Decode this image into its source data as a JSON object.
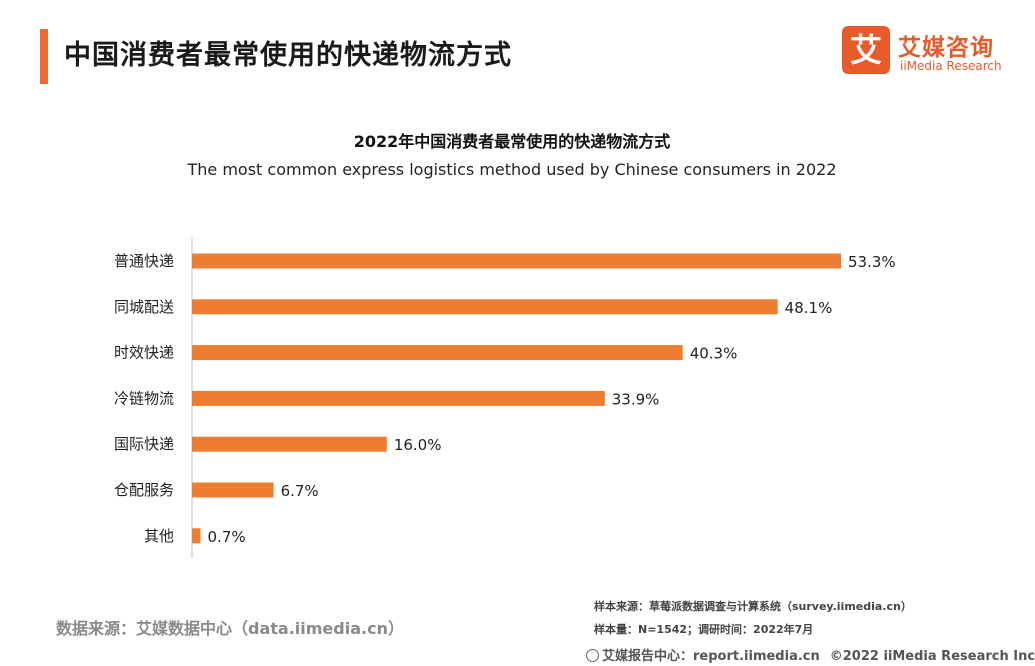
{
  "header": {
    "title": "中国消费者最常使用的快递物流方式"
  },
  "logo": {
    "mark": "艾",
    "name_cn": "艾媒咨询",
    "name_en": "iiMedia Research"
  },
  "chart_data": {
    "type": "bar",
    "orientation": "horizontal",
    "title": "2022年中国消费者最常使用的快递物流方式",
    "subtitle": "The most common express logistics method used by Chinese consumers in 2022",
    "categories": [
      "普通快递",
      "同城配送",
      "时效快递",
      "冷链物流",
      "国际快递",
      "仓配服务",
      "其他"
    ],
    "values": [
      53.3,
      48.1,
      40.3,
      33.9,
      16.0,
      6.7,
      0.7
    ],
    "labels": [
      "53.3%",
      "48.1%",
      "40.3%",
      "33.9%",
      "16.0%",
      "6.7%",
      "0.7%"
    ],
    "unit": "%",
    "xlim": [
      0,
      53.3
    ],
    "bar_color": "#ed7d31",
    "axis_color": "#bfbfbf",
    "grid": false,
    "xlabel": "",
    "ylabel": ""
  },
  "source": {
    "data_source": "数据来源：艾媒数据中心（data.iimedia.cn）",
    "sample_source": "样本来源：草莓派数据调查与计算系统（survey.iimedia.cn）",
    "sample_info": "样本量：N=1542；调研时间：2022年7月"
  },
  "footer": {
    "report_center": "艾媒报告中心：report.iimedia.cn",
    "copyright": "©2022  iiMedia Research  Inc"
  }
}
